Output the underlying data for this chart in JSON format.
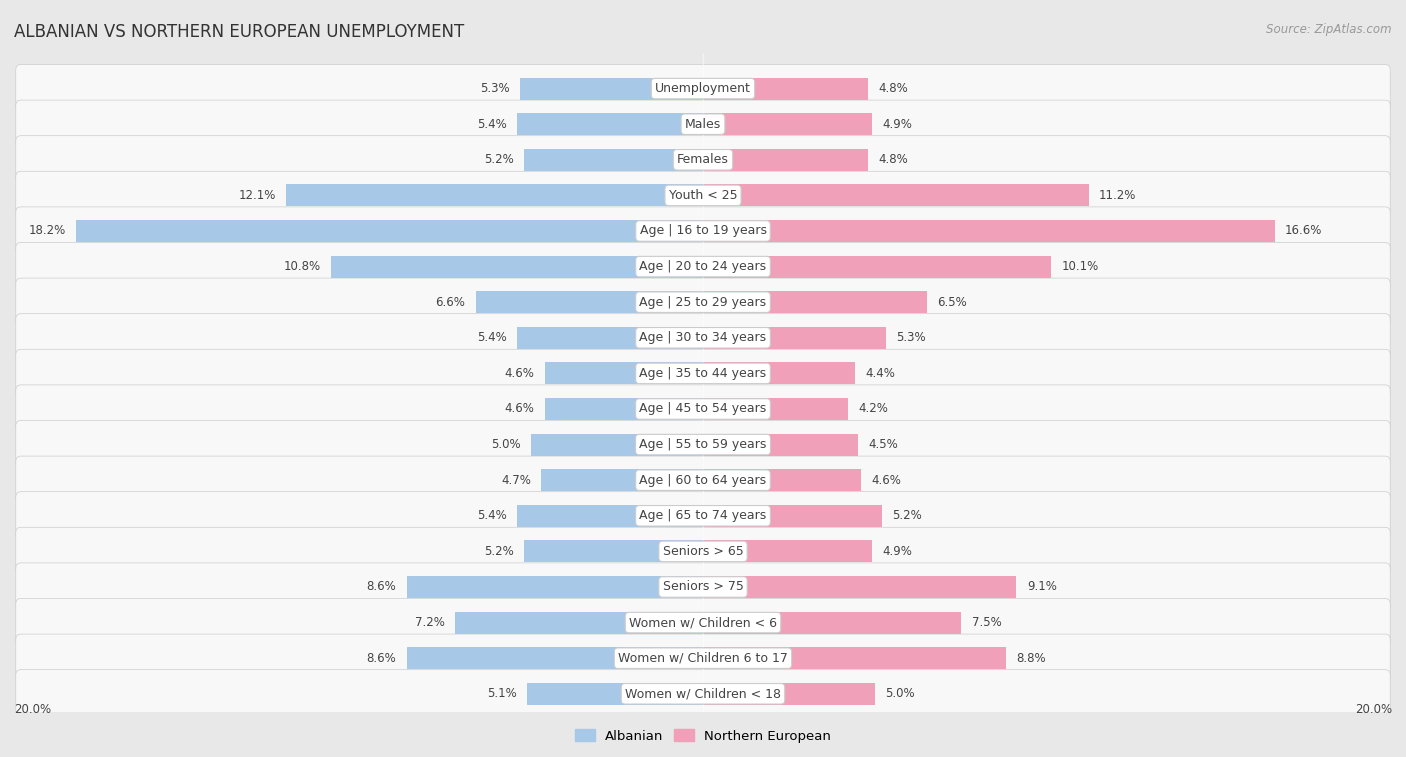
{
  "title": "ALBANIAN VS NORTHERN EUROPEAN UNEMPLOYMENT",
  "source": "Source: ZipAtlas.com",
  "categories": [
    "Unemployment",
    "Males",
    "Females",
    "Youth < 25",
    "Age | 16 to 19 years",
    "Age | 20 to 24 years",
    "Age | 25 to 29 years",
    "Age | 30 to 34 years",
    "Age | 35 to 44 years",
    "Age | 45 to 54 years",
    "Age | 55 to 59 years",
    "Age | 60 to 64 years",
    "Age | 65 to 74 years",
    "Seniors > 65",
    "Seniors > 75",
    "Women w/ Children < 6",
    "Women w/ Children 6 to 17",
    "Women w/ Children < 18"
  ],
  "albanian": [
    5.3,
    5.4,
    5.2,
    12.1,
    18.2,
    10.8,
    6.6,
    5.4,
    4.6,
    4.6,
    5.0,
    4.7,
    5.4,
    5.2,
    8.6,
    7.2,
    8.6,
    5.1
  ],
  "northern_european": [
    4.8,
    4.9,
    4.8,
    11.2,
    16.6,
    10.1,
    6.5,
    5.3,
    4.4,
    4.2,
    4.5,
    4.6,
    5.2,
    4.9,
    9.1,
    7.5,
    8.8,
    5.0
  ],
  "albanian_color": "#a8c8e8",
  "northern_european_color": "#f0a0b8",
  "xlim": 20.0,
  "x_axis_label": "20.0%",
  "background_color": "#e8e8e8",
  "row_bg_white": "#f8f8f8",
  "title_fontsize": 12,
  "label_fontsize": 9,
  "value_fontsize": 8.5,
  "source_fontsize": 8.5
}
